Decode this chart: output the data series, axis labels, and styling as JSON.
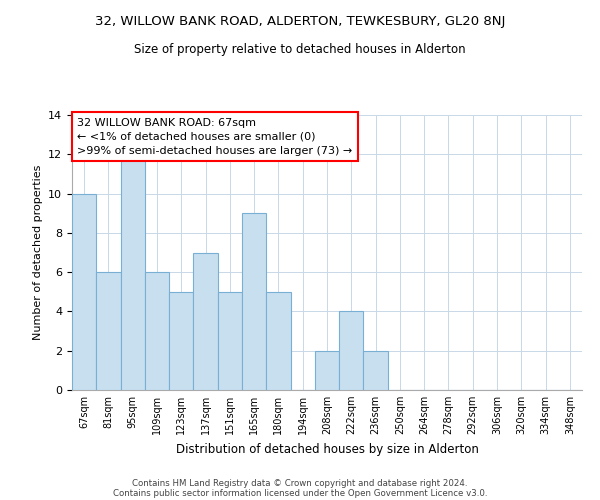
{
  "title": "32, WILLOW BANK ROAD, ALDERTON, TEWKESBURY, GL20 8NJ",
  "subtitle": "Size of property relative to detached houses in Alderton",
  "xlabel": "Distribution of detached houses by size in Alderton",
  "ylabel": "Number of detached properties",
  "bar_color": "#c8dff0",
  "bar_edge_color": "#7aafd4",
  "categories": [
    "67sqm",
    "81sqm",
    "95sqm",
    "109sqm",
    "123sqm",
    "137sqm",
    "151sqm",
    "165sqm",
    "180sqm",
    "194sqm",
    "208sqm",
    "222sqm",
    "236sqm",
    "250sqm",
    "264sqm",
    "278sqm",
    "292sqm",
    "306sqm",
    "320sqm",
    "334sqm",
    "348sqm"
  ],
  "values": [
    10,
    6,
    12,
    6,
    5,
    7,
    5,
    9,
    5,
    0,
    2,
    4,
    2,
    0,
    0,
    0,
    0,
    0,
    0,
    0,
    0
  ],
  "ylim": [
    0,
    14
  ],
  "yticks": [
    0,
    2,
    4,
    6,
    8,
    10,
    12,
    14
  ],
  "annotation_line1": "32 WILLOW BANK ROAD: 67sqm",
  "annotation_line2": "← <1% of detached houses are smaller (0)",
  "annotation_line3": ">99% of semi-detached houses are larger (73) →",
  "footer_line1": "Contains HM Land Registry data © Crown copyright and database right 2024.",
  "footer_line2": "Contains public sector information licensed under the Open Government Licence v3.0."
}
